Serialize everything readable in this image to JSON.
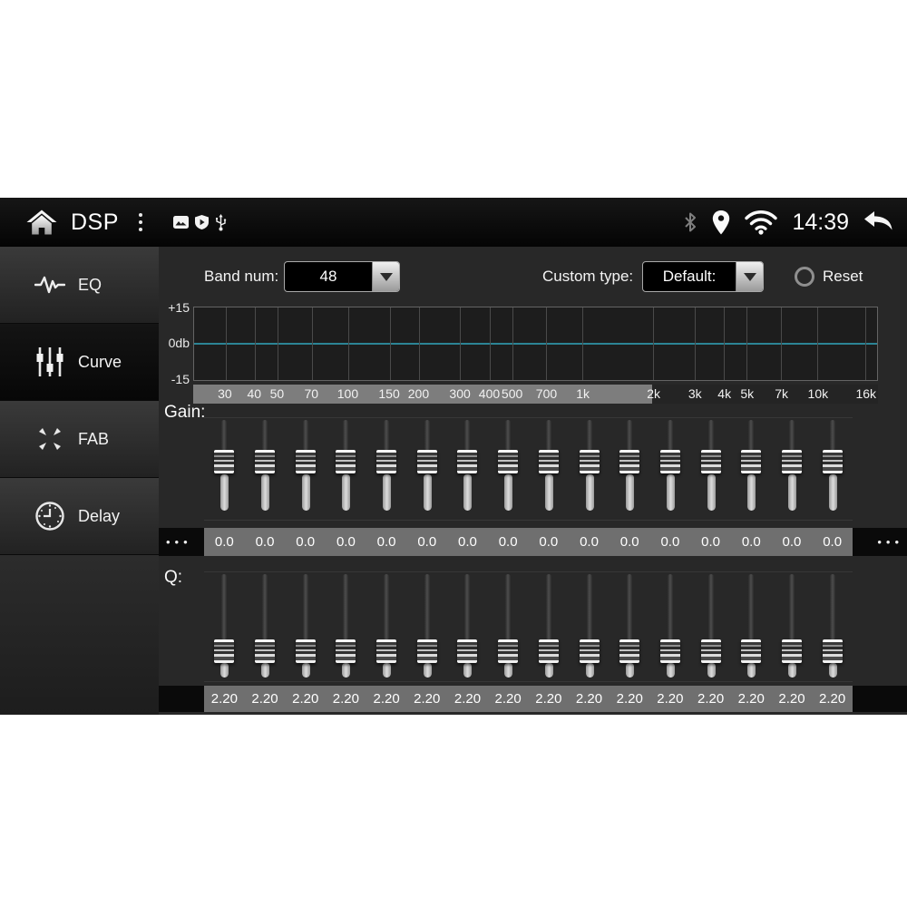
{
  "status_bar": {
    "title": "DSP",
    "time": "14:39",
    "left_icons": [
      "home-icon",
      "overflow-menu-icon",
      "photo-icon",
      "shield-icon",
      "usb-icon"
    ],
    "right_icons": [
      "bluetooth-icon",
      "location-icon",
      "wifi-icon",
      "back-icon"
    ]
  },
  "sidebar": {
    "items": [
      {
        "label": "EQ",
        "icon": "eq-waveform-icon",
        "active": false
      },
      {
        "label": "Curve",
        "icon": "curve-sliders-icon",
        "active": true
      },
      {
        "label": "FAB",
        "icon": "fab-arrows-icon",
        "active": false
      },
      {
        "label": "Delay",
        "icon": "delay-clock-icon",
        "active": false
      }
    ]
  },
  "controls": {
    "band_num_label": "Band num:",
    "band_num_value": "48",
    "custom_type_label": "Custom type:",
    "custom_type_value": "Default:",
    "reset_label": "Reset"
  },
  "graph": {
    "y_axis_labels": [
      "+15",
      "0db",
      "-15"
    ],
    "y_range_db": [
      -15,
      15
    ],
    "flat_line_db": 0,
    "zero_line_color": "#2c8495",
    "visible_range_fraction": 0.67,
    "freq_ticks": [
      {
        "f": 30,
        "label": "30"
      },
      {
        "f": 40,
        "label": "40"
      },
      {
        "f": 50,
        "label": "50"
      },
      {
        "f": 70,
        "label": "70"
      },
      {
        "f": 100,
        "label": "100"
      },
      {
        "f": 150,
        "label": "150"
      },
      {
        "f": 200,
        "label": "200"
      },
      {
        "f": 300,
        "label": "300"
      },
      {
        "f": 400,
        "label": "400"
      },
      {
        "f": 500,
        "label": "500"
      },
      {
        "f": 700,
        "label": "700"
      },
      {
        "f": 1000,
        "label": "1k"
      },
      {
        "f": 2000,
        "label": "2k"
      },
      {
        "f": 3000,
        "label": "3k"
      },
      {
        "f": 4000,
        "label": "4k"
      },
      {
        "f": 5000,
        "label": "5k"
      },
      {
        "f": 7000,
        "label": "7k"
      },
      {
        "f": 10000,
        "label": "10k"
      },
      {
        "f": 16000,
        "label": "16k"
      }
    ]
  },
  "gain": {
    "label": "Gain:",
    "values": [
      "0.0",
      "0.0",
      "0.0",
      "0.0",
      "0.0",
      "0.0",
      "0.0",
      "0.0",
      "0.0",
      "0.0",
      "0.0",
      "0.0",
      "0.0",
      "0.0",
      "0.0",
      "0.0"
    ],
    "more_indicator": "•••"
  },
  "q": {
    "label": "Q:",
    "values": [
      "2.20",
      "2.20",
      "2.20",
      "2.20",
      "2.20",
      "2.20",
      "2.20",
      "2.20",
      "2.20",
      "2.20",
      "2.20",
      "2.20",
      "2.20",
      "2.20",
      "2.20",
      "2.20"
    ]
  }
}
